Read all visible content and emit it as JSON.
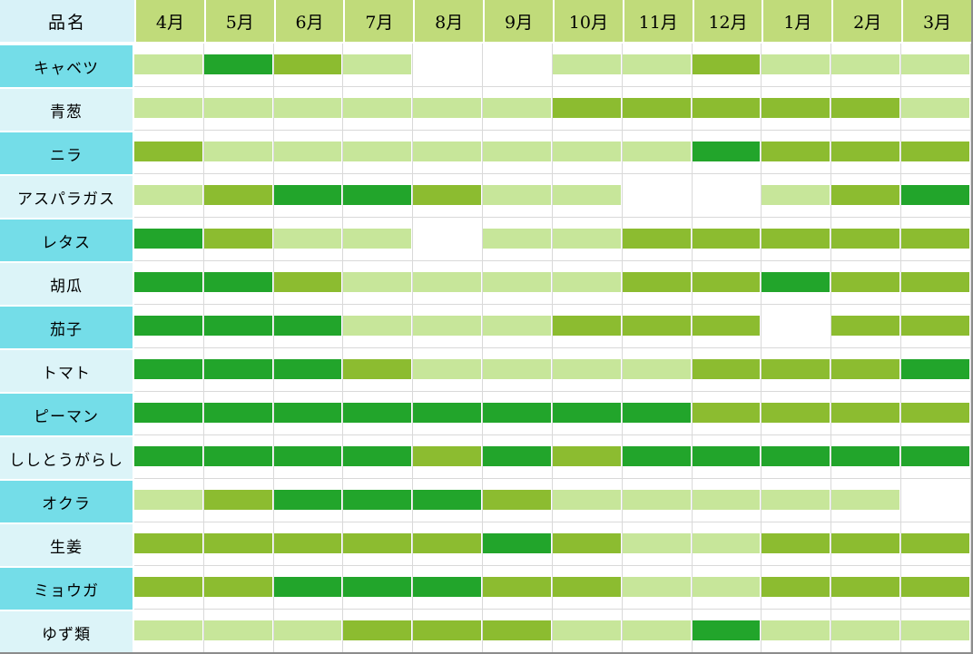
{
  "chart_data": {
    "type": "heatmap",
    "title": "",
    "row_header_label": "品名",
    "columns": [
      "4月",
      "5月",
      "6月",
      "7月",
      "8月",
      "9月",
      "10月",
      "11月",
      "12月",
      "1月",
      "2月",
      "3月"
    ],
    "legend": {
      "L": "light-green availability",
      "M": "medium-green availability",
      "D": "dark-green peak availability",
      "": "not available (blank)"
    },
    "rows": [
      {
        "name": "キャベツ",
        "cells": [
          "L",
          "D",
          "M",
          "L",
          "",
          "",
          "L",
          "L",
          "M",
          "L",
          "L",
          "L"
        ]
      },
      {
        "name": "青葱",
        "cells": [
          "L",
          "L",
          "L",
          "L",
          "L",
          "L",
          "M",
          "M",
          "M",
          "M",
          "M",
          "L"
        ]
      },
      {
        "name": "ニラ",
        "cells": [
          "M",
          "L",
          "L",
          "L",
          "L",
          "L",
          "L",
          "L",
          "D",
          "M",
          "M",
          "M"
        ]
      },
      {
        "name": "アスパラガス",
        "cells": [
          "L",
          "M",
          "D",
          "D",
          "M",
          "L",
          "L",
          "",
          "",
          "L",
          "M",
          "D"
        ]
      },
      {
        "name": "レタス",
        "cells": [
          "D",
          "M",
          "L",
          "L",
          "",
          "L",
          "L",
          "M",
          "M",
          "M",
          "M",
          "M"
        ]
      },
      {
        "name": "胡瓜",
        "cells": [
          "D",
          "D",
          "M",
          "L",
          "L",
          "L",
          "L",
          "M",
          "M",
          "D",
          "M",
          "M"
        ]
      },
      {
        "name": "茄子",
        "cells": [
          "D",
          "D",
          "D",
          "L",
          "L",
          "L",
          "M",
          "M",
          "M",
          "",
          "M",
          "M"
        ]
      },
      {
        "name": "トマト",
        "cells": [
          "D",
          "D",
          "D",
          "M",
          "L",
          "L",
          "L",
          "L",
          "M",
          "M",
          "M",
          "D"
        ]
      },
      {
        "name": "ピーマン",
        "cells": [
          "D",
          "D",
          "D",
          "D",
          "D",
          "D",
          "D",
          "D",
          "M",
          "M",
          "M",
          "M"
        ]
      },
      {
        "name": "ししとうがらし",
        "cells": [
          "D",
          "D",
          "D",
          "D",
          "M",
          "D",
          "M",
          "D",
          "D",
          "D",
          "D",
          "D"
        ]
      },
      {
        "name": "オクラ",
        "cells": [
          "L",
          "M",
          "D",
          "D",
          "D",
          "M",
          "L",
          "L",
          "L",
          "L",
          "L",
          ""
        ]
      },
      {
        "name": "生姜",
        "cells": [
          "M",
          "M",
          "M",
          "M",
          "M",
          "D",
          "M",
          "L",
          "L",
          "M",
          "M",
          "M"
        ]
      },
      {
        "name": "ミョウガ",
        "cells": [
          "M",
          "M",
          "D",
          "D",
          "D",
          "M",
          "M",
          "L",
          "L",
          "M",
          "M",
          "M"
        ]
      },
      {
        "name": "ゆず類",
        "cells": [
          "L",
          "L",
          "L",
          "M",
          "M",
          "M",
          "L",
          "L",
          "D",
          "L",
          "L",
          "L"
        ]
      }
    ]
  },
  "colors": {
    "level_light": "#c7e69a",
    "level_medium": "#8cbc30",
    "level_dark": "#22a52b",
    "month_header_bg": "#c0db7a",
    "corner_bg": "#d8f2f8",
    "row_label_dark_bg": "#74dde8",
    "row_label_light_bg": "#dcf4f8",
    "grid_line": "#d9d9d9",
    "outer_border": "#8c8c8c",
    "text": "#000000"
  }
}
